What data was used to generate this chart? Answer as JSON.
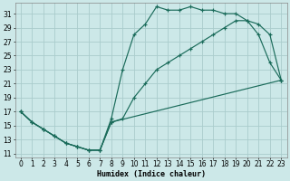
{
  "xlabel": "Humidex (Indice chaleur)",
  "bg_color": "#cce8e8",
  "grid_color": "#aacccc",
  "line_color": "#1a6b5a",
  "xlim": [
    -0.5,
    23.5
  ],
  "ylim": [
    10.5,
    32.5
  ],
  "xticks": [
    0,
    1,
    2,
    3,
    4,
    5,
    6,
    7,
    8,
    9,
    10,
    11,
    12,
    13,
    14,
    15,
    16,
    17,
    18,
    19,
    20,
    21,
    22,
    23
  ],
  "yticks": [
    11,
    13,
    15,
    17,
    19,
    21,
    23,
    25,
    27,
    29,
    31
  ],
  "line1_x": [
    0,
    1,
    2,
    3,
    4,
    5,
    6,
    7,
    8,
    9,
    10,
    11,
    12,
    13,
    14,
    15,
    16,
    17,
    18,
    19,
    20,
    21,
    22,
    23
  ],
  "line1_y": [
    17,
    15.5,
    14.5,
    13.5,
    12.5,
    12,
    11.5,
    11.5,
    16,
    23,
    28,
    29.5,
    32,
    31.5,
    31.5,
    32,
    31.5,
    31.5,
    31,
    31,
    30,
    28,
    24,
    21.5
  ],
  "line2_x": [
    0,
    1,
    2,
    3,
    4,
    5,
    6,
    7,
    8,
    9,
    10,
    11,
    12,
    13,
    14,
    15,
    16,
    17,
    18,
    19,
    20,
    21,
    22,
    23
  ],
  "line2_y": [
    17,
    15.5,
    14.5,
    13.5,
    12.5,
    12,
    11.5,
    11.5,
    15.5,
    16,
    19,
    21,
    23,
    24,
    25,
    26,
    27,
    28,
    29,
    30,
    30,
    29.5,
    28,
    21.5
  ],
  "line3_x": [
    0,
    1,
    2,
    3,
    4,
    5,
    6,
    7,
    8,
    23
  ],
  "line3_y": [
    17,
    15.5,
    14.5,
    13.5,
    12.5,
    12,
    11.5,
    11.5,
    15.5,
    21.5
  ],
  "tick_fontsize": 5.5,
  "xlabel_fontsize": 6.0
}
